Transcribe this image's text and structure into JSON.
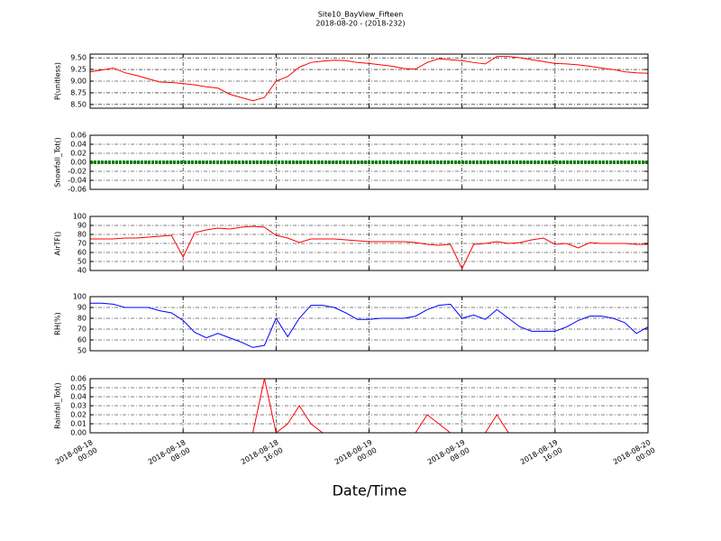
{
  "title": "Site10_BayView_Fifteen",
  "subtitle": "2018-08-20 - (2018-232)",
  "xlabel": "Date/Time",
  "x": [
    "2018-08-18 00:00",
    "2018-08-18 01:00",
    "2018-08-18 02:00",
    "2018-08-18 03:00",
    "2018-08-18 04:00",
    "2018-08-18 05:00",
    "2018-08-18 06:00",
    "2018-08-18 07:00",
    "2018-08-18 08:00",
    "2018-08-18 09:00",
    "2018-08-18 10:00",
    "2018-08-18 11:00",
    "2018-08-18 12:00",
    "2018-08-18 13:00",
    "2018-08-18 14:00",
    "2018-08-18 15:00",
    "2018-08-18 16:00",
    "2018-08-18 17:00",
    "2018-08-18 18:00",
    "2018-08-18 19:00",
    "2018-08-18 20:00",
    "2018-08-18 21:00",
    "2018-08-18 22:00",
    "2018-08-18 23:00",
    "2018-08-19 00:00",
    "2018-08-19 01:00",
    "2018-08-19 02:00",
    "2018-08-19 03:00",
    "2018-08-19 04:00",
    "2018-08-19 05:00",
    "2018-08-19 06:00",
    "2018-08-19 07:00",
    "2018-08-19 08:00",
    "2018-08-19 09:00",
    "2018-08-19 10:00",
    "2018-08-19 11:00",
    "2018-08-19 12:00",
    "2018-08-19 13:00",
    "2018-08-19 14:00",
    "2018-08-19 15:00",
    "2018-08-19 16:00",
    "2018-08-19 17:00",
    "2018-08-19 18:00",
    "2018-08-19 19:00",
    "2018-08-19 20:00",
    "2018-08-19 21:00",
    "2018-08-19 22:00",
    "2018-08-19 23:00",
    "2018-08-20 00:00"
  ],
  "xlim": [
    "2018-08-18 00:00",
    "2018-08-20 00:00"
  ],
  "xticks": [
    {
      "value": "2018-08-18 00:00",
      "label": "2018-08-18\n00:00"
    },
    {
      "value": "2018-08-18 08:00",
      "label": "2018-08-18\n08:00"
    },
    {
      "value": "2018-08-18 16:00",
      "label": "2018-08-18\n16:00"
    },
    {
      "value": "2018-08-19 00:00",
      "label": "2018-08-19\n00:00"
    },
    {
      "value": "2018-08-19 08:00",
      "label": "2018-08-19\n08:00"
    },
    {
      "value": "2018-08-19 16:00",
      "label": "2018-08-19\n16:00"
    },
    {
      "value": "2018-08-20 00:00",
      "label": "2018-08-20\n00:00"
    }
  ],
  "grid": true,
  "chart_data": [
    {
      "type": "line",
      "ylabel": "P(unitless)",
      "ylim": [
        8.42,
        9.58
      ],
      "yticks": [
        {
          "value": 8.5,
          "label": "8.50"
        },
        8.75,
        {
          "value": 9,
          "label": "9.00"
        },
        9.25,
        {
          "value": 9.5,
          "label": "9.50"
        }
      ],
      "series": [
        {
          "color": "#ff0000",
          "values": [
            9.2,
            9.24,
            9.28,
            9.18,
            9.12,
            9.05,
            8.98,
            8.97,
            8.95,
            8.92,
            8.88,
            8.85,
            8.72,
            8.65,
            8.58,
            8.65,
            9.0,
            9.1,
            9.3,
            9.4,
            9.43,
            9.45,
            9.44,
            9.4,
            9.38,
            9.35,
            9.32,
            9.27,
            9.26,
            9.4,
            9.48,
            9.46,
            9.44,
            9.4,
            9.37,
            9.53,
            9.53,
            9.5,
            9.46,
            9.42,
            9.38,
            9.37,
            9.35,
            9.32,
            9.28,
            9.25,
            9.2,
            9.18,
            9.17
          ]
        }
      ]
    },
    {
      "type": "dotline",
      "ylabel": "Snowfall_Tot()",
      "ylim": [
        -0.06,
        0.06
      ],
      "yticks": [
        -0.06,
        -0.04,
        -0.02,
        {
          "value": 0,
          "label": "0.00"
        },
        0.02,
        0.04,
        0.06
      ],
      "series": [
        {
          "color": "#008000",
          "values": [
            0,
            0,
            0,
            0,
            0,
            0,
            0,
            0,
            0,
            0,
            0,
            0,
            0,
            0,
            0,
            0,
            0,
            0,
            0,
            0,
            0,
            0,
            0,
            0,
            0,
            0,
            0,
            0,
            0,
            0,
            0,
            0,
            0,
            0,
            0,
            0,
            0,
            0,
            0,
            0,
            0,
            0,
            0,
            0,
            0,
            0,
            0,
            0,
            0
          ]
        }
      ]
    },
    {
      "type": "line",
      "ylabel": "AirTF()",
      "ylim": [
        40,
        100
      ],
      "yticks": [
        40,
        50,
        60,
        70,
        80,
        90,
        100
      ],
      "series": [
        {
          "color": "#ff0000",
          "values": [
            75,
            75,
            75,
            76,
            76,
            77,
            78,
            79,
            55,
            82,
            85,
            87,
            86,
            88,
            89,
            88,
            79,
            76,
            71,
            75,
            75,
            75,
            74,
            73,
            72,
            72,
            72,
            72,
            71,
            69,
            68,
            69,
            42,
            69,
            70,
            72,
            70,
            71,
            74,
            76,
            69,
            70,
            65,
            71,
            70,
            70,
            70,
            69,
            69
          ]
        }
      ]
    },
    {
      "type": "line",
      "ylabel": "RH(%)",
      "ylim": [
        50,
        100
      ],
      "yticks": [
        50,
        60,
        70,
        80,
        90,
        100
      ],
      "series": [
        {
          "color": "#0000ff",
          "values": [
            94,
            94,
            93,
            90,
            90,
            90,
            87,
            85,
            78,
            67,
            62,
            66,
            62,
            58,
            53,
            55,
            80,
            63,
            80,
            92,
            92,
            90,
            85,
            79,
            79,
            80,
            80,
            80,
            82,
            88,
            92,
            93,
            80,
            83,
            79,
            88,
            80,
            72,
            68,
            68,
            68,
            72,
            78,
            82,
            82,
            80,
            76,
            66,
            72
          ]
        }
      ]
    },
    {
      "type": "line",
      "ylabel": "Rainfall_Tot()",
      "ylim": [
        0,
        0.06
      ],
      "yticks": [
        {
          "value": 0,
          "label": "0.00"
        },
        0.01,
        0.02,
        0.03,
        0.04,
        0.05,
        0.06
      ],
      "series": [
        {
          "color": "#ff0000",
          "values": [
            0,
            0,
            0,
            0,
            0,
            0,
            0,
            0,
            0,
            0,
            0,
            0,
            0,
            0,
            0,
            0.06,
            0,
            0.01,
            0.03,
            0.01,
            0,
            0,
            0,
            0,
            0,
            0,
            0,
            0,
            0,
            0.02,
            0.01,
            0,
            0,
            0,
            0,
            0.02,
            0,
            0,
            0,
            0,
            0,
            0,
            0,
            0,
            0,
            0,
            0,
            0,
            0
          ]
        }
      ]
    }
  ]
}
